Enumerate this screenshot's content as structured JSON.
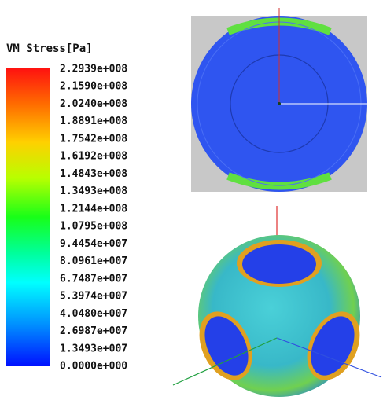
{
  "legend": {
    "title": "VM Stress[Pa]",
    "labels": [
      "2.2939e+008",
      "2.1590e+008",
      "2.0240e+008",
      "1.8891e+008",
      "1.7542e+008",
      "1.6192e+008",
      "1.4843e+008",
      "1.3493e+008",
      "1.2144e+008",
      "1.0795e+008",
      "9.4454e+007",
      "8.0961e+007",
      "6.7487e+007",
      "5.3974e+007",
      "4.0480e+007",
      "2.6987e+007",
      "1.3493e+007",
      "0.0000e+000"
    ]
  }
}
